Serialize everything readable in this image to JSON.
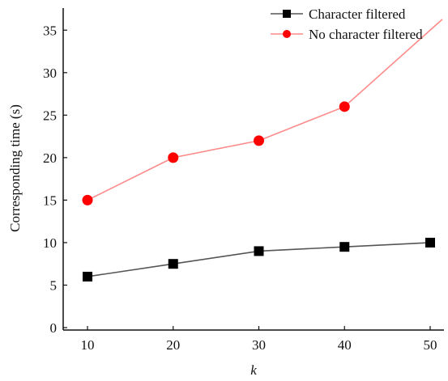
{
  "chart_data": {
    "type": "line",
    "title": "",
    "xlabel": "k",
    "ylabel": "Corresponding time (s)",
    "x": [
      10,
      20,
      30,
      40,
      50
    ],
    "xticks": [
      "10",
      "20",
      "30",
      "40",
      "50"
    ],
    "yticks": [
      "0",
      "5",
      "10",
      "15",
      "20",
      "25",
      "30",
      "35"
    ],
    "xlim": [
      10,
      50
    ],
    "ylim": [
      0,
      37.5
    ],
    "grid": false,
    "legend_position": "top-right",
    "series": [
      {
        "name": "Character filtered",
        "values": [
          6,
          7.5,
          9,
          9.5,
          10
        ],
        "color": "#000000",
        "line_color": "#555555",
        "marker": "square"
      },
      {
        "name": "No character filtered",
        "values": [
          15,
          20,
          22,
          26,
          35
        ],
        "color": "#ff0000",
        "line_color": "#ff8a8a",
        "marker": "circle"
      }
    ]
  }
}
